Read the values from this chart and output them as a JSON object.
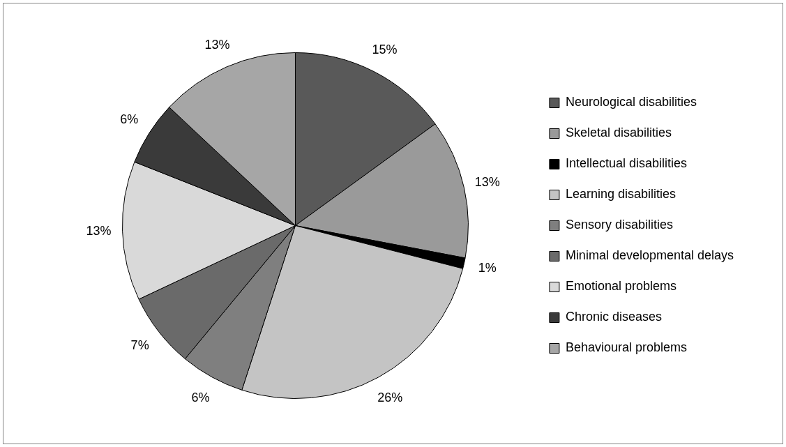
{
  "chart_data": {
    "type": "pie",
    "categories": [
      "Neurological disabilities",
      "Skeletal disabilities",
      "Intellectual disabilities",
      "Learning disabilities",
      "Sensory disabilities",
      "Minimal developmental delays",
      "Emotional problems",
      "Chronic diseases",
      "Behavioural problems"
    ],
    "values": [
      15,
      13,
      1,
      26,
      6,
      7,
      13,
      6,
      13
    ],
    "value_labels": [
      "15%",
      "13%",
      "1%",
      "26%",
      "6%",
      "7%",
      "13%",
      "6%",
      "13%"
    ],
    "colors": [
      "#595959",
      "#9a9a9a",
      "#000000",
      "#c4c4c4",
      "#7f7f7f",
      "#6a6a6a",
      "#d9d9d9",
      "#3a3a3a",
      "#a6a6a6"
    ],
    "legend": "right"
  }
}
